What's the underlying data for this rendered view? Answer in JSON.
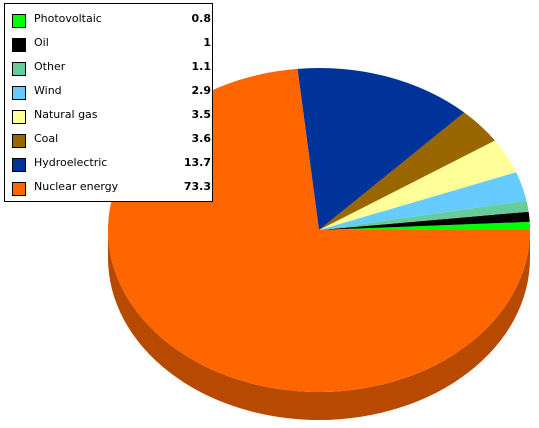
{
  "chart_data": {
    "type": "pie",
    "title": "",
    "legend_position": "top-left",
    "categories": [
      "Photovoltaic",
      "Oil",
      "Other",
      "Wind",
      "Natural gas",
      "Coal",
      "Hydroelectric",
      "Nuclear energy"
    ],
    "values": [
      0.8,
      1,
      1.1,
      2.9,
      3.5,
      3.6,
      13.7,
      73.3
    ],
    "value_labels": [
      "0.8",
      "1",
      "1.1",
      "2.9",
      "3.5",
      "3.6",
      "13.7",
      "73.3"
    ],
    "colors": [
      "#00ff00",
      "#000000",
      "#66cc99",
      "#66ccff",
      "#ffff99",
      "#996600",
      "#003399",
      "#ff6600"
    ]
  }
}
